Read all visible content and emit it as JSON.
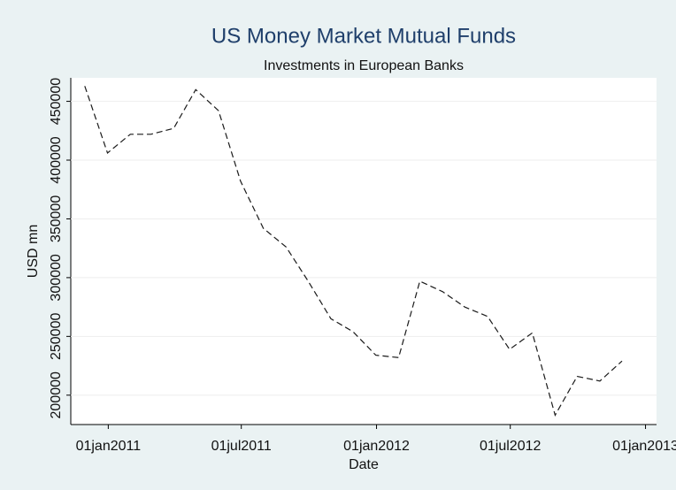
{
  "chart_data": {
    "type": "line",
    "title": "US Money Market Mutual Funds",
    "subtitle": "Investments in European Banks",
    "x_label": "Date",
    "y_label": "USD mn",
    "x": [
      "2010-11-30",
      "2010-12-31",
      "2011-01-31",
      "2011-02-28",
      "2011-03-31",
      "2011-04-30",
      "2011-05-31",
      "2011-06-30",
      "2011-07-31",
      "2011-08-31",
      "2011-09-30",
      "2011-10-31",
      "2011-11-30",
      "2011-12-31",
      "2012-01-31",
      "2012-02-29",
      "2012-03-31",
      "2012-04-30",
      "2012-05-31",
      "2012-06-30",
      "2012-07-31",
      "2012-08-31",
      "2012-09-30",
      "2012-10-31",
      "2012-11-30"
    ],
    "series": [
      {
        "name": "USD mn",
        "color": "#1a1a1a",
        "values": [
          463000,
          406000,
          422000,
          422000,
          427000,
          460000,
          442000,
          382000,
          342000,
          326000,
          297000,
          265000,
          254000,
          234000,
          232000,
          297000,
          288000,
          275000,
          267000,
          239000,
          253000,
          183000,
          216000,
          212000,
          229000
        ]
      }
    ],
    "xlim": [
      "2010-11-11",
      "2013-01-16"
    ],
    "xticks": [
      {
        "value": "2011-01-01",
        "label": "01jan2011"
      },
      {
        "value": "2011-07-01",
        "label": "01jul2011"
      },
      {
        "value": "2012-01-01",
        "label": "01jan2012"
      },
      {
        "value": "2012-07-01",
        "label": "01jul2012"
      },
      {
        "value": "2013-01-01",
        "label": "01jan2013"
      }
    ],
    "ylim": [
      175000,
      470000
    ],
    "yticks": [
      200000,
      250000,
      300000,
      350000,
      400000,
      450000
    ],
    "grid": true,
    "line_style": "dashed"
  }
}
